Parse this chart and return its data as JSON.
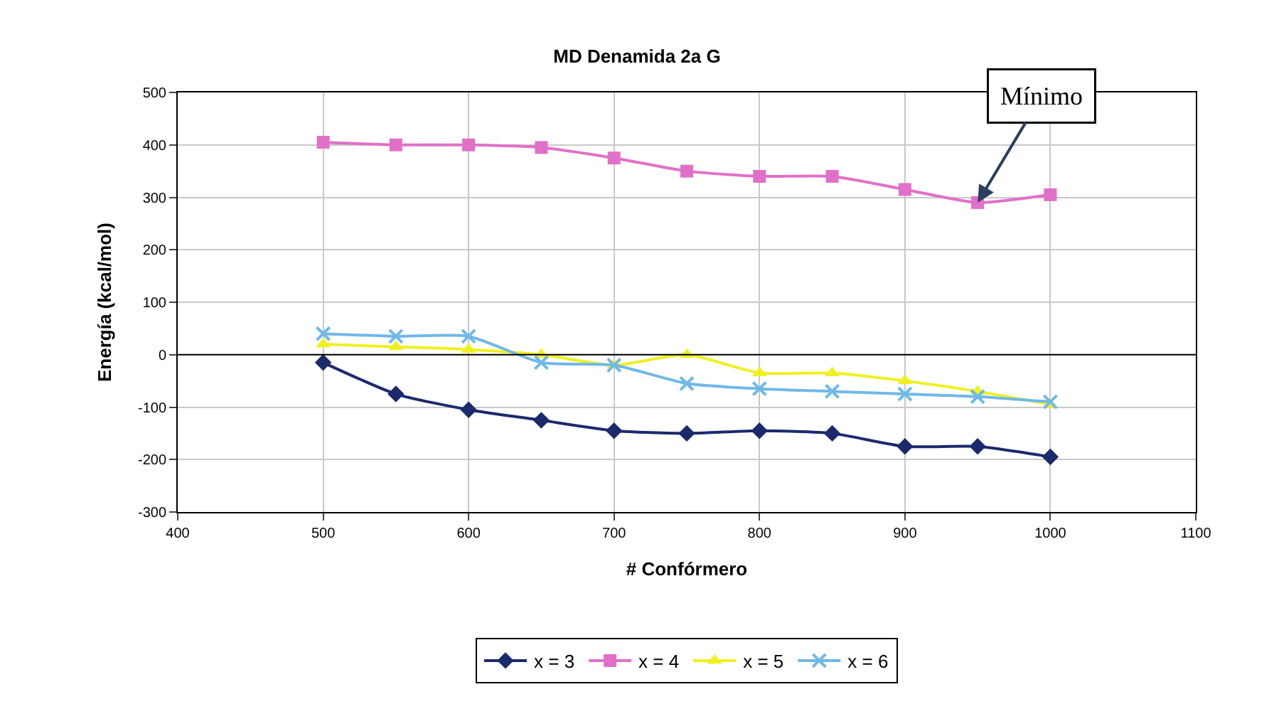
{
  "chart_data": {
    "type": "line",
    "title": "MD Denamida 2a G",
    "xlabel": "# Confórmero",
    "ylabel": "Energía (kcal/mol)",
    "x": [
      500,
      550,
      600,
      650,
      700,
      750,
      800,
      850,
      900,
      950,
      1000
    ],
    "series": [
      {
        "name": "x = 3",
        "color": "#1a2a6c",
        "marker": "diamond",
        "values": [
          -15,
          -75,
          -105,
          -125,
          -145,
          -150,
          -145,
          -150,
          -175,
          -175,
          -195
        ]
      },
      {
        "name": "x = 4",
        "color": "#e070c8",
        "marker": "square",
        "values": [
          405,
          400,
          400,
          395,
          375,
          350,
          340,
          340,
          315,
          290,
          305
        ]
      },
      {
        "name": "x = 5",
        "color": "#f0f020",
        "marker": "triangle",
        "values": [
          20,
          15,
          10,
          0,
          -20,
          0,
          -35,
          -35,
          -50,
          -70,
          -95
        ]
      },
      {
        "name": "x = 6",
        "color": "#70b8e8",
        "marker": "cross",
        "values": [
          40,
          35,
          35,
          -15,
          -20,
          -55,
          -65,
          -70,
          -75,
          -80,
          -90
        ]
      }
    ],
    "xlim": [
      400,
      1100
    ],
    "xticks": [
      400,
      500,
      600,
      700,
      800,
      900,
      1000,
      1100
    ],
    "ylim": [
      -300,
      500
    ],
    "yticks": [
      -300,
      -200,
      -100,
      0,
      100,
      200,
      300,
      400,
      500
    ],
    "ref_lines": [
      {
        "axis": "y",
        "value": 0,
        "color": "#000000"
      }
    ],
    "annotations": [
      {
        "text": "Mínimo",
        "x": 950,
        "y": 290
      }
    ],
    "grid": true,
    "legend": "bottom"
  }
}
